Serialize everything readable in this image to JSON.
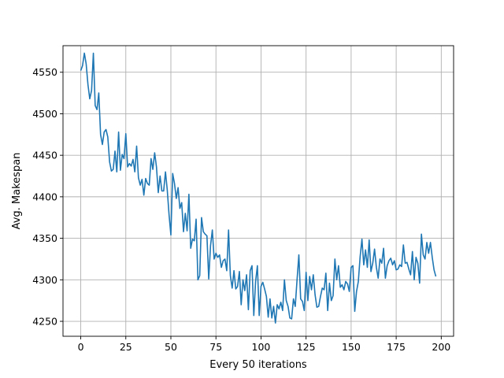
{
  "chart_data": {
    "type": "line",
    "title": "",
    "xlabel": "Every 50 iterations",
    "ylabel": "Avg. Makespan",
    "xlim": [
      -9.85,
      206.85
    ],
    "ylim": [
      4232,
      4582
    ],
    "x_ticks": [
      0,
      25,
      50,
      75,
      100,
      125,
      150,
      175,
      200
    ],
    "y_ticks": [
      4250,
      4300,
      4350,
      4400,
      4450,
      4500,
      4550
    ],
    "grid": true,
    "line_color": "#1f77b4",
    "series": [
      {
        "x_start": 0,
        "x_step": 1,
        "values": [
          4552,
          4558,
          4573,
          4560,
          4535,
          4518,
          4528,
          4573,
          4510,
          4505,
          4525,
          4475,
          4463,
          4478,
          4481,
          4472,
          4442,
          4431,
          4433,
          4455,
          4430,
          4478,
          4432,
          4451,
          4446,
          4476,
          4436,
          4440,
          4437,
          4445,
          4430,
          4461,
          4423,
          4414,
          4421,
          4402,
          4422,
          4416,
          4414,
          4446,
          4433,
          4453,
          4436,
          4405,
          4425,
          4407,
          4407,
          4430,
          4408,
          4378,
          4354,
          4428,
          4416,
          4398,
          4411,
          4386,
          4393,
          4358,
          4380,
          4359,
          4403,
          4338,
          4349,
          4347,
          4373,
          4300,
          4305,
          4375,
          4358,
          4355,
          4353,
          4301,
          4341,
          4360,
          4325,
          4332,
          4327,
          4330,
          4315,
          4323,
          4325,
          4311,
          4360,
          4305,
          4290,
          4311,
          4289,
          4292,
          4310,
          4270,
          4300,
          4287,
          4306,
          4264,
          4311,
          4317,
          4257,
          4298,
          4317,
          4257,
          4292,
          4297,
          4289,
          4280,
          4255,
          4277,
          4254,
          4268,
          4248,
          4270,
          4265,
          4273,
          4263,
          4300,
          4275,
          4268,
          4254,
          4253,
          4277,
          4268,
          4300,
          4330,
          4277,
          4274,
          4263,
          4309,
          4275,
          4304,
          4288,
          4306,
          4282,
          4267,
          4268,
          4280,
          4290,
          4288,
          4308,
          4263,
          4296,
          4275,
          4281,
          4325,
          4300,
          4317,
          4291,
          4294,
          4288,
          4298,
          4295,
          4286,
          4315,
          4317,
          4262,
          4286,
          4298,
          4328,
          4349,
          4318,
          4336,
          4315,
          4348,
          4310,
          4320,
          4337,
          4315,
          4302,
          4325,
          4320,
          4338,
          4302,
          4317,
          4323,
          4326,
          4318,
          4323,
          4312,
          4313,
          4318,
          4316,
          4342,
          4320,
          4321,
          4313,
          4306,
          4334,
          4300,
          4327,
          4320,
          4296,
          4355,
          4330,
          4325,
          4345,
          4332,
          4345,
          4327,
          4312,
          4304
        ]
      }
    ]
  }
}
